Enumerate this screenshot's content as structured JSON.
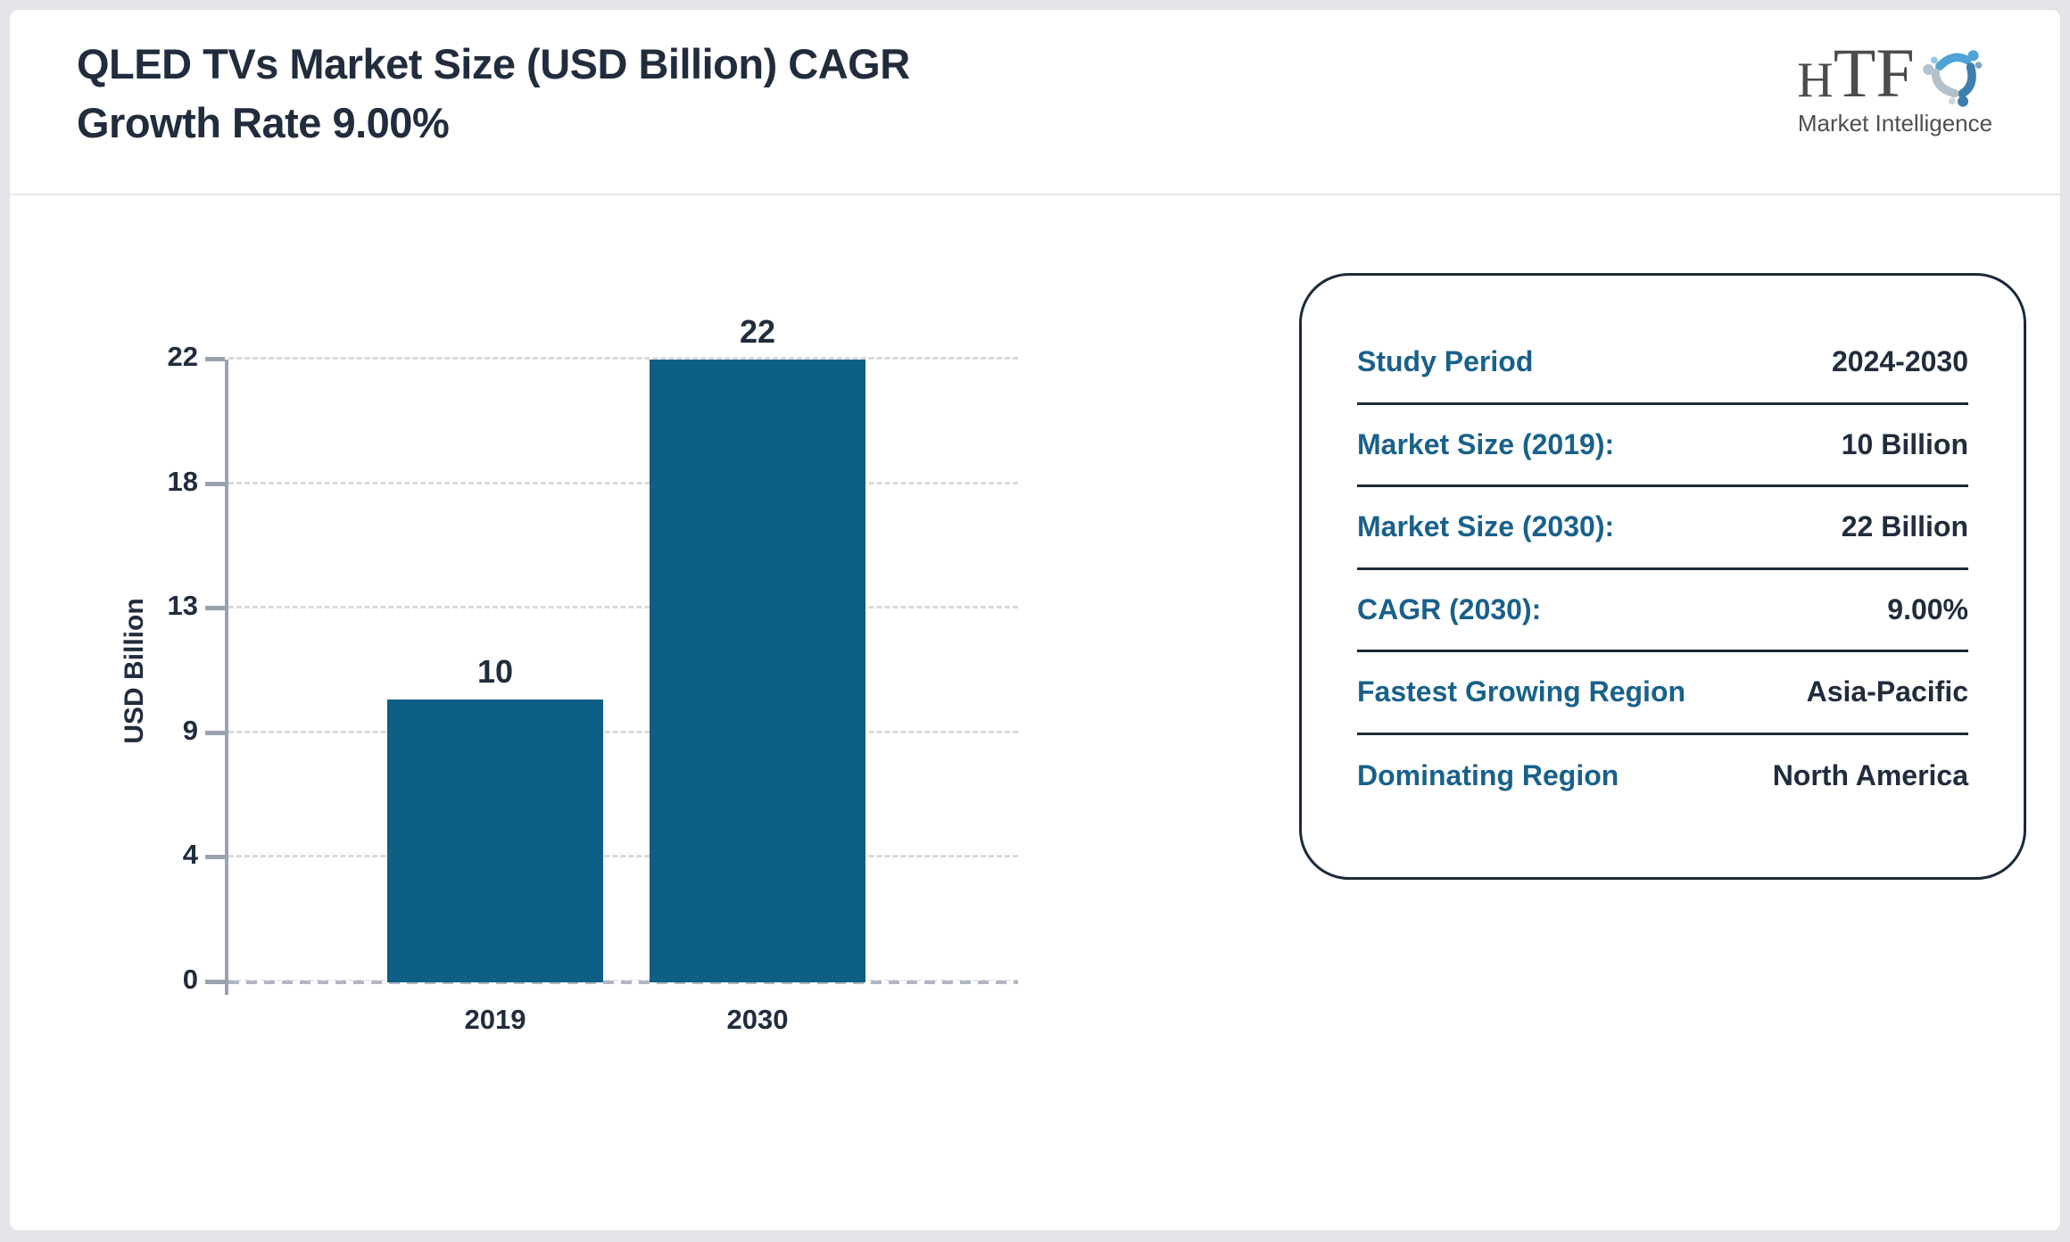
{
  "header": {
    "title_line1": "QLED TVs Market Size (USD Billion) CAGR",
    "title_line2": "Growth Rate 9.00%",
    "logo": {
      "letters": [
        "H",
        "T",
        "F"
      ],
      "caption": "Market Intelligence"
    }
  },
  "chart_data": {
    "type": "bar",
    "categories": [
      "2019",
      "2030"
    ],
    "values": [
      10,
      22
    ],
    "title": "QLED TVs Market Size (USD Billion) CAGR Growth Rate 9.00%",
    "xlabel": "",
    "ylabel": "USD Billion",
    "ylim": [
      0,
      22
    ],
    "ytick_labels": [
      "0",
      "4",
      "9",
      "13",
      "18",
      "22"
    ],
    "grid": true,
    "legend": false,
    "bar_color": "#0d5f86"
  },
  "info_box": {
    "rows": [
      {
        "label": "Study Period",
        "value": "2024-2030"
      },
      {
        "label": "Market Size (2019):",
        "value": "10 Billion"
      },
      {
        "label": "Market Size (2030):",
        "value": "22 Billion"
      },
      {
        "label": "CAGR (2030):",
        "value": "9.00%"
      },
      {
        "label": "Fastest Growing Region",
        "value": "Asia-Pacific"
      },
      {
        "label": "Dominating Region",
        "value": "North America"
      }
    ]
  },
  "colors": {
    "bar": "#0d5f86",
    "label_teal": "#19618a",
    "text_navy": "#212c3c",
    "axis_gray": "#9aa2ae",
    "outer_bg": "#e5e6ea"
  }
}
